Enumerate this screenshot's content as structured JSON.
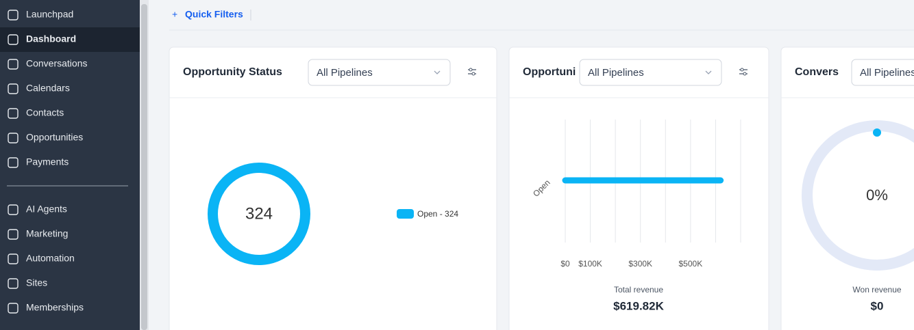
{
  "sidebar": {
    "items": [
      "Launchpad",
      "Dashboard",
      "Conversations",
      "Calendars",
      "Contacts",
      "Opportunities",
      "Payments"
    ],
    "more_items": [
      "AI Agents",
      "Marketing",
      "Automation",
      "Sites",
      "Memberships"
    ]
  },
  "toolbar": {
    "quick_filters": "Quick Filters"
  },
  "cards": [
    {
      "title": "Opportunity Status",
      "pipeline": "All Pipelines",
      "chart": {
        "type": "donut",
        "center_label": 324,
        "series": [
          {
            "name": "Open - 324",
            "value": 324,
            "color": "#0ab4f5"
          }
        ]
      }
    },
    {
      "title": "Opportuni",
      "pipeline": "All Pipelines",
      "chart": {
        "type": "bar",
        "categories": [
          "Open"
        ],
        "values": [
          619820
        ],
        "color": "#0ab4f5",
        "xlim": [
          0,
          700000
        ],
        "xticks": [
          {
            "value": 0,
            "label": "$0"
          },
          {
            "value": 100000,
            "label": "$100K"
          },
          {
            "value": 300000,
            "label": "$300K"
          },
          {
            "value": 500000,
            "label": "$500K"
          }
        ],
        "gridlines": [
          0,
          100000,
          200000,
          300000,
          400000,
          500000,
          600000,
          700000
        ]
      },
      "summary": {
        "label": "Total revenue",
        "value": "$619.82K"
      }
    },
    {
      "title": "Convers",
      "pipeline": "All Pipelines",
      "chart": {
        "type": "progress",
        "value": 0,
        "value_label": "0%",
        "color": "#0ab4f5",
        "track_color": "#e3e9f7"
      },
      "summary": {
        "label": "Won revenue",
        "value": "$0"
      }
    }
  ]
}
